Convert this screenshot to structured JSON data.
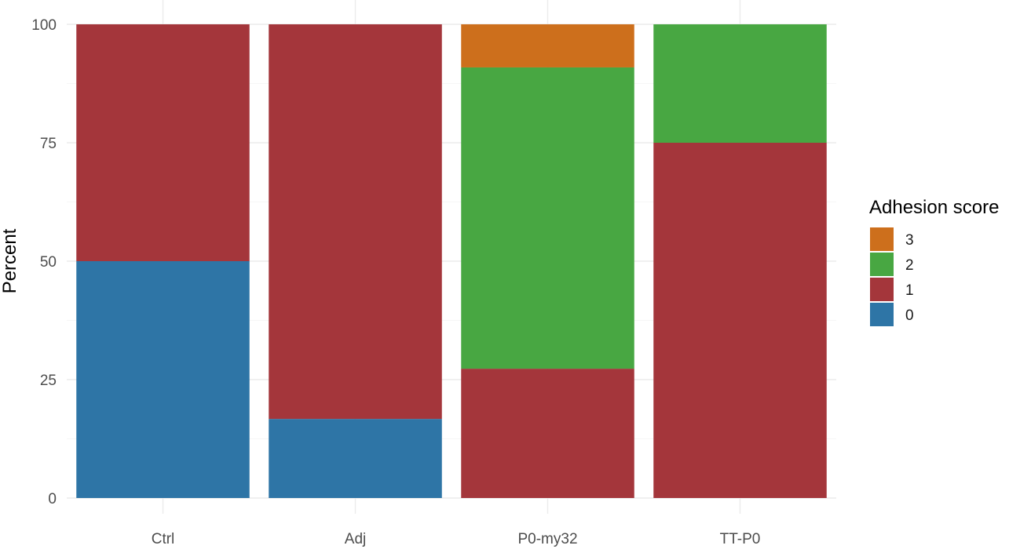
{
  "chart_data": {
    "type": "bar",
    "stacked": true,
    "ylabel": "Percent",
    "xlabel": "",
    "ylim": [
      0,
      100
    ],
    "yticks": [
      0,
      25,
      50,
      75,
      100
    ],
    "grid": true,
    "categories": [
      "Ctrl",
      "Adj",
      "P0-my32",
      "TT-P0"
    ],
    "legend": {
      "title": "Adhesion score",
      "placement": "right",
      "order": [
        "3",
        "2",
        "1",
        "0"
      ]
    },
    "series": [
      {
        "name": "0",
        "color": "#2e75a6",
        "values": [
          50,
          16.7,
          0,
          0
        ]
      },
      {
        "name": "1",
        "color": "#a4363b",
        "values": [
          50,
          83.3,
          27.3,
          75
        ]
      },
      {
        "name": "2",
        "color": "#48a742",
        "values": [
          0,
          0,
          63.6,
          25
        ]
      },
      {
        "name": "3",
        "color": "#cd6f1c",
        "values": [
          0,
          0,
          9.1,
          0
        ]
      }
    ]
  }
}
